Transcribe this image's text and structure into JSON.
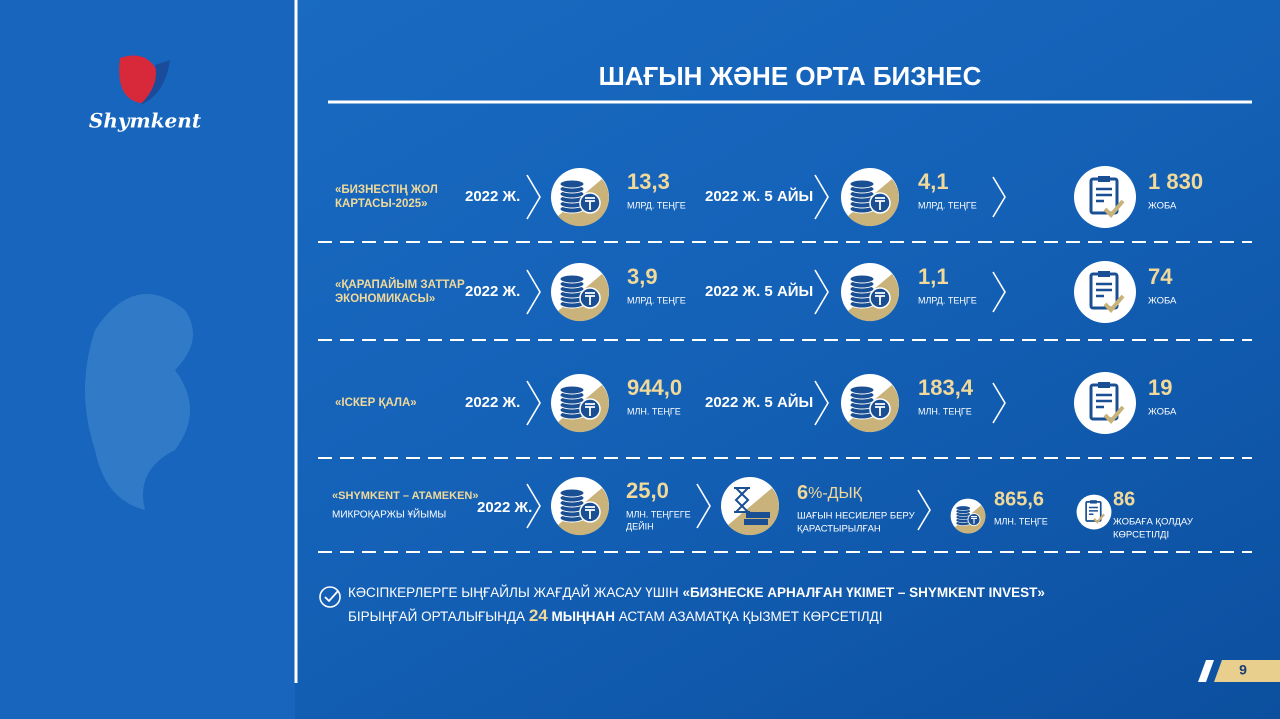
{
  "header": {
    "logo": "Shymkent",
    "title": "ШАҒЫН ЖӘНЕ ОРТА БИЗНЕС"
  },
  "rows": [
    {
      "name": [
        "«БИЗНЕСТІҢ ЖОЛ",
        "КАРТАСЫ-2025»"
      ],
      "period1": "2022 Ж.",
      "amount1": "13,3",
      "unit1": "МЛРД. ТЕҢГЕ",
      "period2": "2022 Ж. 5 АЙЫ",
      "amount2": "4,1",
      "unit2": "МЛРД. ТЕҢГЕ",
      "projects": "1 830",
      "projects_unit": "ЖОБА"
    },
    {
      "name": [
        "«ҚАРАПАЙЫМ ЗАТТАР",
        "ЭКОНОМИКАСЫ»"
      ],
      "period1": "2022 Ж.",
      "amount1": "3,9",
      "unit1": "МЛРД. ТЕҢГЕ",
      "period2": "2022 Ж. 5 АЙЫ",
      "amount2": "1,1",
      "unit2": "МЛРД. ТЕҢГЕ",
      "projects": "74",
      "projects_unit": "ЖОБА"
    },
    {
      "name": [
        "«ІСКЕР ҚАЛА»"
      ],
      "period1": "2022 Ж.",
      "amount1": "944,0",
      "unit1": "МЛН. ТЕҢГЕ",
      "period2": "2022 Ж. 5 АЙЫ",
      "amount2": "183,4",
      "unit2": "МЛН. ТЕҢГЕ",
      "projects": "19",
      "projects_unit": "ЖОБА"
    }
  ],
  "microfinance": {
    "name": "«SHYMKENT – ATAMEKEN»",
    "subtitle": "МИКРОҚАРЖЫ ҰЙЫМЫ",
    "period": "2022 Ж.",
    "amount": "25,0",
    "unit": [
      "МЛН. ТЕҢГЕГЕ",
      "ДЕЙІН"
    ],
    "rate": "6",
    "rate_suffix": "%-ДЫҚ",
    "rate_text": [
      "ШАҒЫН НЕСИЕЛЕР БЕРУ",
      "ҚАРАСТЫРЫЛҒАН"
    ],
    "issued": "865,6",
    "issued_unit": "МЛН. ТЕҢГЕ",
    "projects": "86",
    "projects_text": [
      "ЖОБАҒА ҚОЛДАУ",
      "КӨРСЕТІЛДІ"
    ]
  },
  "footer": {
    "line1": [
      "КӘСІПКЕРЛЕРГЕ ЫҢҒАЙЛЫ ЖАҒДАЙ ЖАСАУ ҮШІН ",
      "«БИЗНЕСКЕ АРНАЛҒАН ҮКІМЕТ – SHYMKENT INVEST»"
    ],
    "line2": [
      "БІРЫҢҒАЙ ОРТАЛЫҒЫНДА ",
      "24",
      " МЫҢНАН",
      " АСТАМ АЗАМАТҚА ҚЫЗМЕТ КӨРСЕТІЛДІ"
    ]
  },
  "page_number": "9"
}
